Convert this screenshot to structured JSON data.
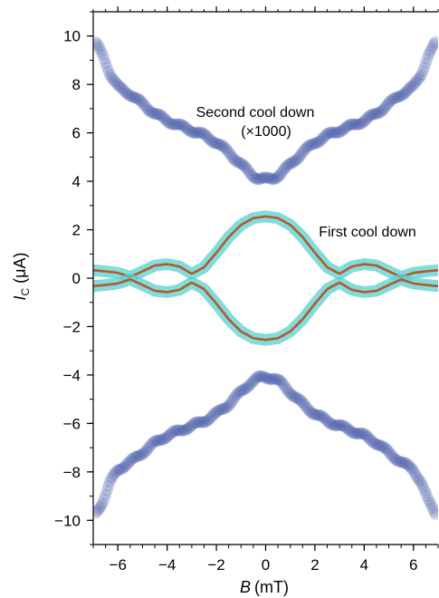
{
  "chart_data": {
    "type": "scatter",
    "title": "",
    "xlabel": {
      "symbol": "B",
      "unit": "(mT)"
    },
    "ylabel": {
      "symbol": "I",
      "subscript": "C",
      "unit": "(μA)"
    },
    "xlim": [
      -7,
      7
    ],
    "ylim": [
      -11,
      11
    ],
    "x_ticks": [
      -6,
      -4,
      -2,
      0,
      2,
      4,
      6
    ],
    "x_tick_labels": [
      "−6",
      "−4",
      "−2",
      "0",
      "2",
      "4",
      "6"
    ],
    "y_ticks": [
      -10,
      -8,
      -6,
      -4,
      -2,
      0,
      2,
      4,
      6,
      8,
      10
    ],
    "y_tick_labels": [
      "−10",
      "−8",
      "−6",
      "−4",
      "−2",
      "0",
      "2",
      "4",
      "6",
      "8",
      "10"
    ],
    "grid": false,
    "annotations": [
      {
        "text": "Second cool down",
        "x": -0.2,
        "y": 6.55
      },
      {
        "text": "(×1000)",
        "x": 0.0,
        "y": 5.8
      },
      {
        "text": "First cool down",
        "x": 4.4,
        "y": 1.8
      }
    ],
    "series": [
      {
        "label": "Second cool down (×1000)",
        "style": "scatter",
        "color": "#4a5aaa",
        "x": [
          -6.9,
          -6.6,
          -6.3,
          -6.0,
          -5.5,
          -5.0,
          -4.5,
          -4.0,
          -3.5,
          -3.0,
          -2.5,
          -2.0,
          -1.5,
          -1.0,
          -0.6,
          -0.3,
          0.0,
          0.3,
          0.6,
          1.0,
          1.5,
          2.0,
          2.5,
          3.0,
          3.5,
          4.0,
          4.5,
          5.0,
          5.5,
          6.0,
          6.3,
          6.6,
          6.9
        ],
        "y_upper": [
          9.7,
          9.2,
          8.4,
          7.9,
          7.6,
          7.2,
          6.8,
          6.5,
          6.3,
          6.1,
          5.9,
          5.6,
          5.2,
          4.7,
          4.3,
          4.12,
          4.08,
          4.12,
          4.3,
          4.7,
          5.2,
          5.6,
          5.9,
          6.1,
          6.3,
          6.5,
          6.8,
          7.2,
          7.6,
          7.9,
          8.4,
          9.2,
          9.7
        ],
        "y_lower": [
          -9.7,
          -9.2,
          -8.4,
          -7.9,
          -7.6,
          -7.2,
          -6.8,
          -6.5,
          -6.3,
          -6.1,
          -5.9,
          -5.6,
          -5.2,
          -4.7,
          -4.3,
          -4.12,
          -4.08,
          -4.12,
          -4.3,
          -4.7,
          -5.2,
          -5.6,
          -5.9,
          -6.1,
          -6.3,
          -6.5,
          -6.8,
          -7.2,
          -7.6,
          -7.9,
          -8.4,
          -9.2,
          -9.7
        ]
      },
      {
        "label": "First cool down",
        "style": "band+line",
        "band_color": "#58d0d0",
        "line_color": "#b35a2a",
        "x": [
          -7.0,
          -6.5,
          -6.0,
          -5.5,
          -5.0,
          -4.5,
          -4.0,
          -3.5,
          -3.0,
          -2.5,
          -2.0,
          -1.5,
          -1.0,
          -0.5,
          0.0,
          0.5,
          1.0,
          1.5,
          2.0,
          2.5,
          3.0,
          3.5,
          4.0,
          4.5,
          5.0,
          5.5,
          6.0,
          6.5,
          7.0
        ],
        "y_upper": [
          0.33,
          0.28,
          0.22,
          0.05,
          0.28,
          0.52,
          0.58,
          0.48,
          0.18,
          0.45,
          1.05,
          1.7,
          2.2,
          2.48,
          2.55,
          2.48,
          2.2,
          1.7,
          1.05,
          0.45,
          0.18,
          0.48,
          0.58,
          0.52,
          0.28,
          0.05,
          0.22,
          0.28,
          0.33
        ],
        "y_lower": [
          -0.33,
          -0.28,
          -0.22,
          -0.05,
          -0.28,
          -0.52,
          -0.58,
          -0.48,
          -0.18,
          -0.45,
          -1.05,
          -1.7,
          -2.2,
          -2.48,
          -2.55,
          -2.48,
          -2.2,
          -1.7,
          -1.05,
          -0.45,
          -0.18,
          -0.48,
          -0.58,
          -0.52,
          -0.28,
          -0.05,
          -0.22,
          -0.28,
          -0.33
        ]
      }
    ]
  }
}
